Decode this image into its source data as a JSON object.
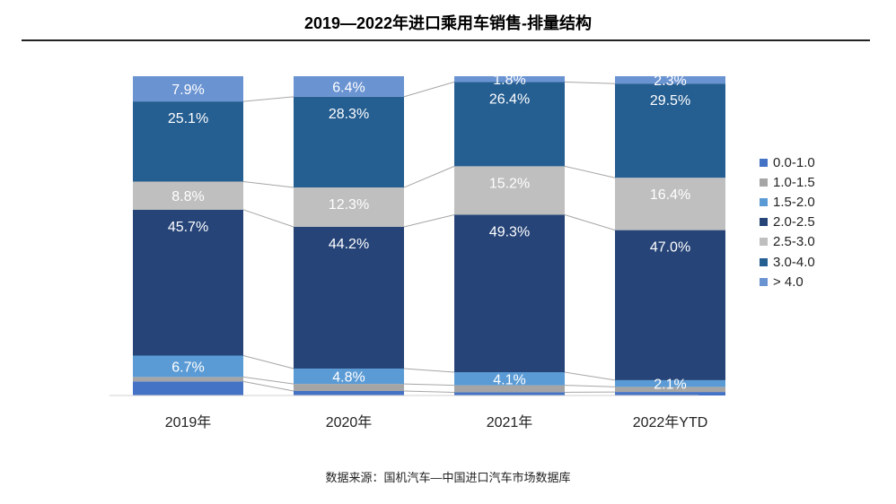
{
  "chart_data": {
    "type": "stacked-bar-100",
    "title": "2019—2022年进口乘用车销售-排量结构",
    "categories": [
      "2019年",
      "2020年",
      "2021年",
      "2022年YTD"
    ],
    "series": [
      {
        "name": "0.0-1.0",
        "color": "#4472C4",
        "values": [
          4.4,
          1.4,
          1.0,
          1.1
        ],
        "labels": [
          "",
          "",
          "",
          ""
        ]
      },
      {
        "name": "1.0-1.5",
        "color": "#A5A5A5",
        "values": [
          1.4,
          2.2,
          2.2,
          1.6
        ],
        "labels": [
          "",
          "",
          "",
          ""
        ]
      },
      {
        "name": "1.5-2.0",
        "color": "#5B9BD5",
        "values": [
          6.7,
          4.8,
          4.1,
          2.1
        ],
        "labels": [
          "6.7%",
          "4.8%",
          "4.1%",
          "2.1%"
        ]
      },
      {
        "name": "2.0-2.5",
        "color": "#264478",
        "values": [
          45.7,
          44.2,
          49.3,
          47.0
        ],
        "labels": [
          "45.7%",
          "44.2%",
          "49.3%",
          "47.0%"
        ]
      },
      {
        "name": "2.5-3.0",
        "color": "#BFBFBF",
        "values": [
          8.8,
          12.3,
          15.2,
          16.4
        ],
        "labels": [
          "8.8%",
          "12.3%",
          "15.2%",
          "16.4%"
        ]
      },
      {
        "name": "3.0-4.0",
        "color": "#255E91",
        "values": [
          25.1,
          28.3,
          26.4,
          29.5
        ],
        "labels": [
          "25.1%",
          "28.3%",
          "26.4%",
          "29.5%"
        ]
      },
      {
        "name": "> 4.0",
        "color": "#6A93D2",
        "values": [
          7.9,
          6.4,
          1.8,
          2.3
        ],
        "labels": [
          "7.9%",
          "6.4%",
          "1.8%",
          "2.3%"
        ]
      }
    ],
    "ylim": [
      0,
      100
    ],
    "legend_position": "right",
    "series_lines": true,
    "grid": false
  },
  "source": "数据来源：国机汽车—中国进口汽车市场数据库"
}
